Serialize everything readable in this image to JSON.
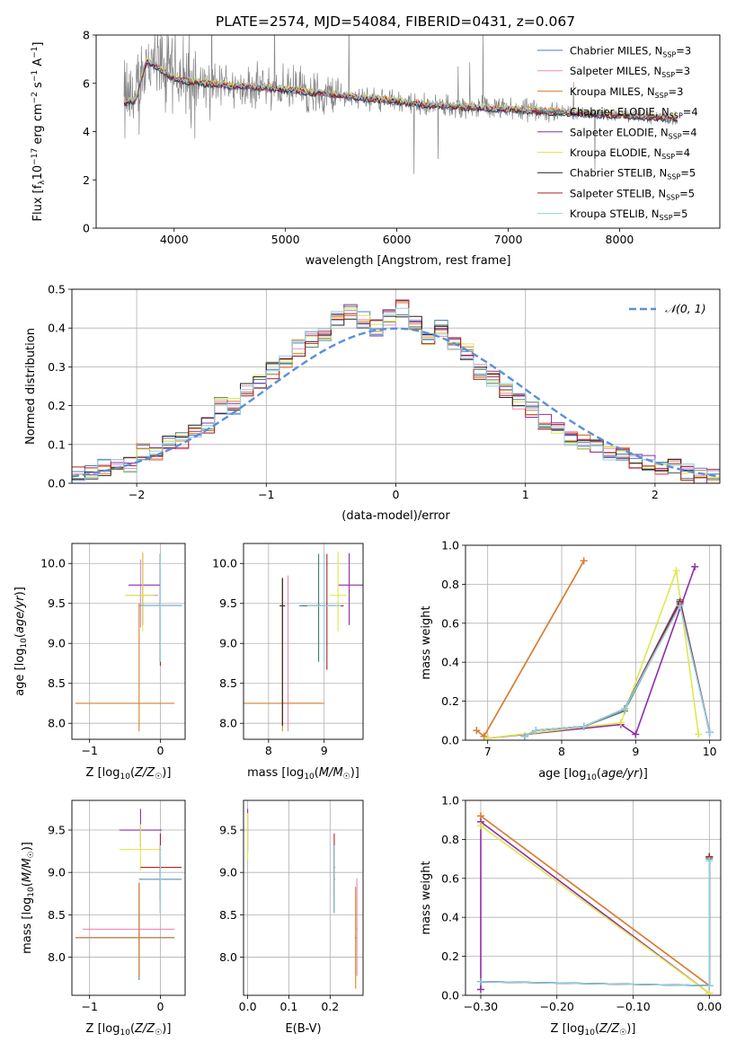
{
  "figure": {
    "title": "PLATE=2574, MJD=54084, FIBERID=0431, z=0.067",
    "fit_colors": [
      "#4f7cbd",
      "#ef8ab5",
      "#d6812e",
      "#4f7f6d",
      "#8e2da8",
      "#dfe84a",
      "#222222",
      "#b22222",
      "#8fd0e8"
    ],
    "data_color": "#888888"
  },
  "chart_data": [
    {
      "id": "spectrum",
      "type": "line",
      "xlabel": "wavelength [Angstrom, rest frame]",
      "ylabel": "Flux [f_λ 10^-17 erg cm^-2 s^-1 A^-1]",
      "xlim": [
        3300,
        8900
      ],
      "ylim": [
        0,
        8
      ],
      "xticks": [
        4000,
        5000,
        6000,
        7000,
        8000
      ],
      "yticks": [
        0,
        2,
        4,
        6,
        8
      ],
      "grid": false,
      "legend_position": "top-right",
      "legend": [
        "Chabrier MILES, N_SSP=3",
        "Salpeter MILES, N_SSP=3",
        "Kroupa MILES, N_SSP=3",
        "Chabrier ELODIE, N_SSP=4",
        "Salpeter ELODIE, N_SSP=4",
        "Kroupa ELODIE, N_SSP=4",
        "Chabrier STELIB, N_SSP=5",
        "Salpeter STELIB, N_SSP=5",
        "Kroupa STELIB, N_SSP=5"
      ],
      "model_continuum": {
        "x": [
          3550,
          3650,
          3750,
          3850,
          3950,
          4100,
          4300,
          4500,
          4700,
          4900,
          5100,
          5300,
          5500,
          5700,
          5900,
          6100,
          6300,
          6500,
          6700,
          6900,
          7100,
          7300,
          7500,
          7700,
          7900,
          8100,
          8300,
          8500
        ],
        "y": [
          5.2,
          5.3,
          6.9,
          6.7,
          6.3,
          6.1,
          6.0,
          5.9,
          5.85,
          5.8,
          5.7,
          5.6,
          5.5,
          5.4,
          5.3,
          5.2,
          5.1,
          5.05,
          5.0,
          4.95,
          4.9,
          4.85,
          4.8,
          4.75,
          4.7,
          4.65,
          4.6,
          4.55
        ]
      }
    },
    {
      "id": "residuals",
      "type": "line",
      "xlabel": "(data-model)/error",
      "ylabel": "Normed distribution",
      "xlim": [
        -2.5,
        2.5
      ],
      "ylim": [
        0,
        0.5
      ],
      "xticks": [
        -2,
        -1,
        0,
        1,
        2
      ],
      "yticks": [
        0.0,
        0.1,
        0.2,
        0.3,
        0.4,
        0.5
      ],
      "grid": true,
      "legend_position": "top-right",
      "series": [
        {
          "name": "𝒩(0, 1)",
          "style": "dashed",
          "color": "#5b8fd6",
          "function": "normal_pdf_mean0_sd1"
        }
      ],
      "histogram": {
        "bin_width": 0.1,
        "x_start": -2.5,
        "values": [
          0.02,
          0.03,
          0.04,
          0.04,
          0.05,
          0.08,
          0.07,
          0.1,
          0.11,
          0.13,
          0.15,
          0.2,
          0.2,
          0.24,
          0.26,
          0.29,
          0.31,
          0.35,
          0.37,
          0.38,
          0.42,
          0.44,
          0.42,
          0.4,
          0.43,
          0.45,
          0.41,
          0.37,
          0.4,
          0.36,
          0.34,
          0.29,
          0.27,
          0.24,
          0.21,
          0.19,
          0.16,
          0.14,
          0.12,
          0.11,
          0.09,
          0.08,
          0.07,
          0.06,
          0.05,
          0.04,
          0.04,
          0.03,
          0.02,
          0.02
        ]
      }
    },
    {
      "id": "age_vs_Z",
      "type": "scatter",
      "xlabel": "Z [log10(Z/Z☉)]",
      "ylabel": "age [log10(age/yr)]",
      "xlim": [
        -1.25,
        0.35
      ],
      "ylim": [
        7.8,
        10.25
      ],
      "xticks": [
        -1,
        0
      ],
      "yticks": [
        8.0,
        8.5,
        9.0,
        9.5,
        10.0
      ],
      "grid": true,
      "errorbars": [
        {
          "series": 0,
          "x": 0.0,
          "y": 9.47,
          "xerr": [
            0.3,
            0.3
          ],
          "yerr": [
            0.7,
            0.65
          ]
        },
        {
          "series": 1,
          "x": -0.28,
          "y": 9.6,
          "xerr": [
            0.2,
            0.25
          ],
          "yerr": [
            0.4,
            0.45
          ]
        },
        {
          "series": 2,
          "x": -0.3,
          "y": 8.25,
          "xerr": [
            0.9,
            0.5
          ],
          "yerr": [
            0.35,
            1.25
          ]
        },
        {
          "series": 3,
          "x": 0.0,
          "y": 9.47,
          "xerr": [
            0.28,
            0.3
          ],
          "yerr": [
            0.7,
            0.65
          ]
        },
        {
          "series": 4,
          "x": -0.25,
          "y": 9.73,
          "xerr": [
            0.2,
            0.25
          ],
          "yerr": [
            0.5,
            0.4
          ]
        },
        {
          "series": 5,
          "x": -0.25,
          "y": 9.6,
          "xerr": [
            0.25,
            0.15
          ],
          "yerr": [
            0.45,
            0.55
          ]
        },
        {
          "series": 6,
          "x": 0.0,
          "y": 9.47,
          "xerr": [
            0.28,
            0.3
          ],
          "yerr": [
            0.7,
            0.65
          ]
        },
        {
          "series": 7,
          "x": 0.0,
          "y": 9.47,
          "xerr": [
            0.28,
            0.3
          ],
          "yerr": [
            0.75,
            0.65
          ]
        },
        {
          "series": 8,
          "x": 0.0,
          "y": 9.47,
          "xerr": [
            0.28,
            0.3
          ],
          "yerr": [
            0.7,
            0.65
          ]
        }
      ]
    },
    {
      "id": "age_vs_mass",
      "type": "scatter",
      "xlabel": "mass [log10(M/M☉)]",
      "ylabel": "",
      "xlim": [
        7.55,
        9.7
      ],
      "ylim": [
        7.8,
        10.25
      ],
      "xticks": [
        8,
        9
      ],
      "yticks": [
        8.0,
        8.5,
        9.0,
        9.5,
        10.0
      ],
      "grid": true,
      "errorbars": [
        {
          "series": 0,
          "x": 8.9,
          "y": 9.47,
          "xerr": [
            0.35,
            0.3
          ],
          "yerr": [
            0.7,
            0.65
          ]
        },
        {
          "series": 1,
          "x": 8.35,
          "y": 8.25,
          "xerr": [
            0.1,
            0.6
          ],
          "yerr": [
            0.35,
            1.6
          ]
        },
        {
          "series": 2,
          "x": 8.25,
          "y": 8.25,
          "xerr": [
            0.7,
            0.75
          ],
          "yerr": [
            0.35,
            1.55
          ]
        },
        {
          "series": 3,
          "x": 8.9,
          "y": 9.47,
          "xerr": [
            0.3,
            0.3
          ],
          "yerr": [
            0.7,
            0.65
          ]
        },
        {
          "series": 4,
          "x": 9.45,
          "y": 9.73,
          "xerr": [
            0.2,
            0.25
          ],
          "yerr": [
            0.5,
            0.4
          ]
        },
        {
          "series": 5,
          "x": 9.25,
          "y": 9.6,
          "xerr": [
            0.15,
            0.15
          ],
          "yerr": [
            0.45,
            0.55
          ]
        },
        {
          "series": 6,
          "x": 8.25,
          "y": 9.47,
          "xerr": [
            0.05,
            0.05
          ],
          "yerr": [
            1.5,
            0.35
          ]
        },
        {
          "series": 7,
          "x": 9.05,
          "y": 9.47,
          "xerr": [
            0.3,
            0.3
          ],
          "yerr": [
            0.8,
            0.65
          ]
        },
        {
          "series": 8,
          "x": 9.0,
          "y": 9.47,
          "xerr": [
            0.3,
            0.3
          ],
          "yerr": [
            0.7,
            0.65
          ]
        }
      ]
    },
    {
      "id": "weight_vs_age",
      "type": "line",
      "xlabel": "age [log10(age/yr)]",
      "ylabel": "mass weight",
      "xlim": [
        6.7,
        10.15
      ],
      "ylim": [
        0,
        1.0
      ],
      "xticks": [
        7,
        8,
        9,
        10
      ],
      "yticks": [
        0.0,
        0.2,
        0.4,
        0.6,
        0.8,
        1.0
      ],
      "grid": true,
      "series": [
        {
          "name": "",
          "x": [
            7.5,
            7.65,
            8.3,
            8.85,
            9.6,
            10.0
          ],
          "y": [
            0.02,
            0.05,
            0.07,
            0.16,
            0.72,
            0.04
          ]
        },
        {
          "name": "",
          "x": [
            6.85,
            6.95,
            8.3
          ],
          "y": [
            0.05,
            0.02,
            0.92
          ]
        },
        {
          "name": "",
          "x": [
            6.85,
            6.95,
            8.3
          ],
          "y": [
            0.05,
            0.02,
            0.92
          ]
        },
        {
          "name": "",
          "x": [
            7.5,
            7.65,
            8.3,
            8.85,
            9.6,
            10.0
          ],
          "y": [
            0.02,
            0.05,
            0.07,
            0.15,
            0.7,
            0.04
          ]
        },
        {
          "name": "",
          "x": [
            7.0,
            8.8,
            9.0,
            9.8
          ],
          "y": [
            0.01,
            0.08,
            0.03,
            0.89
          ]
        },
        {
          "name": "",
          "x": [
            7.0,
            8.8,
            9.55,
            9.85
          ],
          "y": [
            0.01,
            0.09,
            0.87,
            0.03
          ]
        },
        {
          "name": "",
          "x": [
            7.5,
            7.65,
            8.3,
            8.85,
            9.6,
            10.0
          ],
          "y": [
            0.02,
            0.05,
            0.07,
            0.16,
            0.71,
            0.04
          ]
        },
        {
          "name": "",
          "x": [
            7.5,
            7.65,
            8.3,
            8.85,
            9.6,
            10.0
          ],
          "y": [
            0.02,
            0.05,
            0.07,
            0.16,
            0.71,
            0.04
          ]
        },
        {
          "name": "",
          "x": [
            7.5,
            7.65,
            8.3,
            8.85,
            9.6,
            10.0
          ],
          "y": [
            0.02,
            0.05,
            0.07,
            0.16,
            0.69,
            0.04
          ]
        }
      ]
    },
    {
      "id": "mass_vs_Z",
      "type": "scatter",
      "xlabel": "Z [log10(Z/Z☉)]",
      "ylabel": "mass [log10(M/M☉)]",
      "xlim": [
        -1.25,
        0.35
      ],
      "ylim": [
        7.55,
        9.85
      ],
      "xticks": [
        -1,
        0
      ],
      "yticks": [
        8.0,
        8.5,
        9.0,
        9.5
      ],
      "grid": true,
      "errorbars": [
        {
          "series": 0,
          "x": -0.3,
          "y": 8.23,
          "xerr": [
            0.9,
            0.5
          ],
          "yerr": [
            0.5,
            0.65
          ]
        },
        {
          "series": 1,
          "x": -0.3,
          "y": 8.33,
          "xerr": [
            0.8,
            0.5
          ],
          "yerr": [
            0.5,
            0.5
          ]
        },
        {
          "series": 2,
          "x": -0.3,
          "y": 8.23,
          "xerr": [
            0.9,
            0.5
          ],
          "yerr": [
            0.45,
            0.65
          ]
        },
        {
          "series": 3,
          "x": 0.0,
          "y": 8.92,
          "xerr": [
            0.3,
            0.3
          ],
          "yerr": [
            0.4,
            0.4
          ]
        },
        {
          "series": 4,
          "x": -0.28,
          "y": 9.5,
          "xerr": [
            0.3,
            0.3
          ],
          "yerr": [
            0.2,
            0.25
          ]
        },
        {
          "series": 5,
          "x": -0.28,
          "y": 9.27,
          "xerr": [
            0.3,
            0.3
          ],
          "yerr": [
            0.25,
            0.3
          ]
        },
        {
          "series": 6,
          "x": 0.0,
          "y": 8.92,
          "xerr": [
            0.28,
            0.3
          ],
          "yerr": [
            0.4,
            0.4
          ]
        },
        {
          "series": 7,
          "x": 0.0,
          "y": 9.06,
          "xerr": [
            0.28,
            0.3
          ],
          "yerr": [
            0.4,
            0.4
          ]
        },
        {
          "series": 8,
          "x": 0.0,
          "y": 8.92,
          "xerr": [
            0.28,
            0.3
          ],
          "yerr": [
            0.4,
            0.4
          ]
        }
      ]
    },
    {
      "id": "mass_vs_ebv",
      "type": "scatter",
      "xlabel": "E(B-V)",
      "ylabel": "",
      "xlim": [
        -0.01,
        0.28
      ],
      "ylim": [
        7.55,
        9.85
      ],
      "xticks": [
        0.0,
        0.1,
        0.2
      ],
      "yticks": [
        8.0,
        8.5,
        9.0,
        9.5
      ],
      "grid": true,
      "errorbars": [
        {
          "series": 0,
          "x": 0.21,
          "y": 8.92,
          "xerr": [
            0.002,
            0.002
          ],
          "yerr": [
            0.4,
            0.4
          ]
        },
        {
          "series": 1,
          "x": 0.265,
          "y": 8.33,
          "xerr": [
            0.002,
            0.002
          ],
          "yerr": [
            0.55,
            0.6
          ]
        },
        {
          "series": 2,
          "x": 0.262,
          "y": 8.23,
          "xerr": [
            0.002,
            0.002
          ],
          "yerr": [
            0.6,
            0.6
          ]
        },
        {
          "series": 3,
          "x": 0.21,
          "y": 8.92,
          "xerr": [
            0.002,
            0.002
          ],
          "yerr": [
            0.4,
            0.4
          ]
        },
        {
          "series": 4,
          "x": 0.0,
          "y": 9.5,
          "xerr": [
            0.002,
            0.002
          ],
          "yerr": [
            0.25,
            0.25
          ]
        },
        {
          "series": 5,
          "x": 0.0,
          "y": 9.4,
          "xerr": [
            0.002,
            0.002
          ],
          "yerr": [
            0.25,
            0.3
          ]
        },
        {
          "series": 6,
          "x": 0.21,
          "y": 8.92,
          "xerr": [
            0.002,
            0.002
          ],
          "yerr": [
            0.4,
            0.4
          ]
        },
        {
          "series": 7,
          "x": 0.21,
          "y": 9.06,
          "xerr": [
            0.002,
            0.002
          ],
          "yerr": [
            0.4,
            0.4
          ]
        },
        {
          "series": 8,
          "x": 0.21,
          "y": 8.92,
          "xerr": [
            0.002,
            0.002
          ],
          "yerr": [
            0.4,
            0.4
          ]
        }
      ]
    },
    {
      "id": "weight_vs_Z",
      "type": "line",
      "xlabel": "Z [log10(Z/Z☉)]",
      "ylabel": "mass weight",
      "xlim": [
        -0.32,
        0.015
      ],
      "ylim": [
        0,
        1.0
      ],
      "xticks": [
        -0.3,
        -0.2,
        -0.1,
        0.0
      ],
      "yticks": [
        0.0,
        0.2,
        0.4,
        0.6,
        0.8,
        1.0
      ],
      "grid": true,
      "series": [
        {
          "name": "",
          "x": [
            -0.3,
            0.0,
            0.0
          ],
          "y": [
            0.07,
            0.05,
            0.71
          ]
        },
        {
          "name": "",
          "x": [
            -0.3,
            0.0
          ],
          "y": [
            0.92,
            0.05
          ]
        },
        {
          "name": "",
          "x": [
            -0.3,
            0.0
          ],
          "y": [
            0.92,
            0.05
          ]
        },
        {
          "name": "",
          "x": [
            -0.3,
            0.0,
            0.0
          ],
          "y": [
            0.07,
            0.05,
            0.7
          ]
        },
        {
          "name": "",
          "x": [
            -0.3,
            -0.3,
            0.0
          ],
          "y": [
            0.03,
            0.89,
            0.01
          ]
        },
        {
          "name": "",
          "x": [
            -0.3,
            0.0
          ],
          "y": [
            0.87,
            0.01
          ]
        },
        {
          "name": "",
          "x": [
            -0.3,
            0.0,
            0.0
          ],
          "y": [
            0.07,
            0.05,
            0.71
          ]
        },
        {
          "name": "",
          "x": [
            -0.3,
            0.0,
            0.0
          ],
          "y": [
            0.07,
            0.05,
            0.71
          ]
        },
        {
          "name": "",
          "x": [
            -0.3,
            0.0,
            0.0
          ],
          "y": [
            0.07,
            0.05,
            0.69
          ]
        }
      ]
    }
  ]
}
